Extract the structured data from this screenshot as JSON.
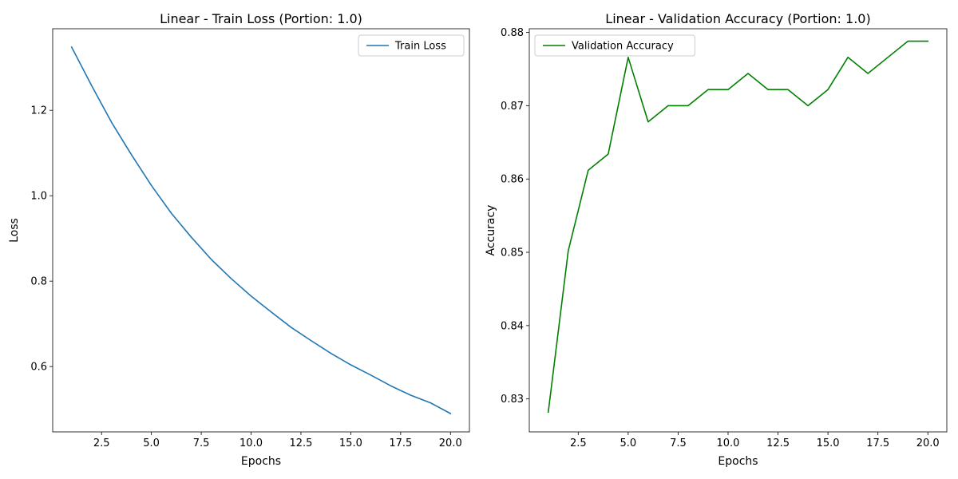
{
  "chart_data": [
    {
      "type": "line",
      "title": "Linear - Train Loss (Portion: 1.0)",
      "xlabel": "Epochs",
      "ylabel": "Loss",
      "xlim": [
        0.05,
        20.95
      ],
      "ylim": [
        0.447,
        1.391
      ],
      "xticks": [
        2.5,
        5.0,
        7.5,
        10.0,
        12.5,
        15.0,
        17.5,
        20.0
      ],
      "xtick_labels": [
        "2.5",
        "5.0",
        "7.5",
        "10.0",
        "12.5",
        "15.0",
        "17.5",
        "20.0"
      ],
      "yticks": [
        0.6,
        0.8,
        1.0,
        1.2
      ],
      "ytick_labels": [
        "0.6",
        "0.8",
        "1.0",
        "1.2"
      ],
      "grid": false,
      "legend_position": "top-right",
      "series": [
        {
          "name": "Train Loss",
          "color": "#1f77b4",
          "x": [
            1,
            2,
            3,
            4,
            5,
            6,
            7,
            8,
            9,
            10,
            11,
            12,
            13,
            14,
            15,
            16,
            17,
            18,
            19,
            20
          ],
          "values": [
            1.348,
            1.258,
            1.172,
            1.096,
            1.024,
            0.959,
            0.903,
            0.851,
            0.806,
            0.765,
            0.728,
            0.692,
            0.661,
            0.631,
            0.604,
            0.58,
            0.555,
            0.533,
            0.515,
            0.49
          ]
        }
      ]
    },
    {
      "type": "line",
      "title": "Linear - Validation Accuracy (Portion: 1.0)",
      "xlabel": "Epochs",
      "ylabel": "Accuracy",
      "xlim": [
        0.05,
        20.95
      ],
      "ylim": [
        0.8255,
        0.8805
      ],
      "xticks": [
        2.5,
        5.0,
        7.5,
        10.0,
        12.5,
        15.0,
        17.5,
        20.0
      ],
      "xtick_labels": [
        "2.5",
        "5.0",
        "7.5",
        "10.0",
        "12.5",
        "15.0",
        "17.5",
        "20.0"
      ],
      "yticks": [
        0.83,
        0.84,
        0.85,
        0.86,
        0.87,
        0.88
      ],
      "ytick_labels": [
        "0.83",
        "0.84",
        "0.85",
        "0.86",
        "0.87",
        "0.88"
      ],
      "grid": false,
      "legend_position": "top-left",
      "series": [
        {
          "name": "Validation Accuracy",
          "color": "#008000",
          "x": [
            1,
            2,
            3,
            4,
            5,
            6,
            7,
            8,
            9,
            10,
            11,
            12,
            13,
            14,
            15,
            16,
            17,
            18,
            19,
            20
          ],
          "values": [
            0.8282,
            0.8502,
            0.8612,
            0.8634,
            0.8766,
            0.8678,
            0.87,
            0.87,
            0.8722,
            0.8722,
            0.8744,
            0.8722,
            0.8722,
            0.87,
            0.8722,
            0.8766,
            0.8744,
            0.8766,
            0.8788,
            0.8788
          ]
        }
      ]
    }
  ]
}
